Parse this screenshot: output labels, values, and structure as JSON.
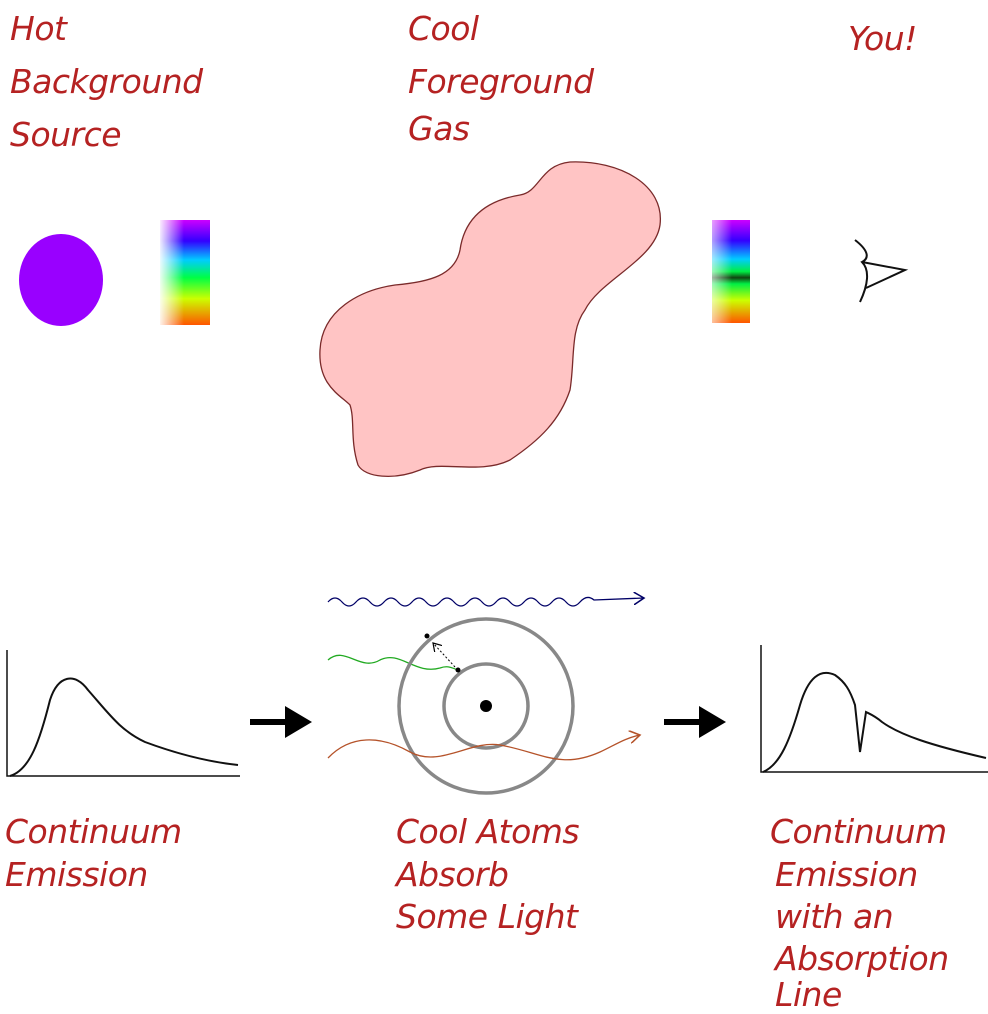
{
  "labels": {
    "source": [
      "Hot",
      "Background",
      "Source"
    ],
    "gas": [
      "Cool",
      "Foreground",
      "Gas"
    ],
    "observer": [
      "You!"
    ],
    "continuum": [
      "Continuum",
      "Emission"
    ],
    "atoms": [
      "Cool Atoms",
      "Absorb",
      "Some Light"
    ],
    "absorption": [
      "Continuum",
      "Emission",
      "with an",
      "Absorption",
      "Line"
    ]
  }
}
